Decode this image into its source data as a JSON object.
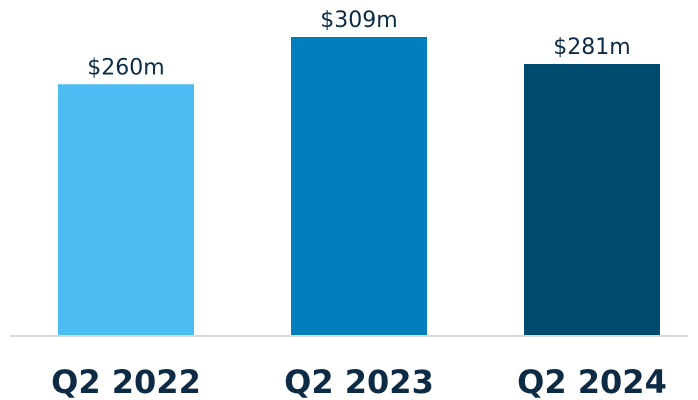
{
  "chart_data": {
    "type": "bar",
    "categories": [
      "Q2 2022",
      "Q2 2023",
      "Q2 2024"
    ],
    "values": [
      260,
      309,
      281
    ],
    "value_labels": [
      "$260m",
      "$309m",
      "$281m"
    ],
    "unit": "$m",
    "title": "",
    "xlabel": "",
    "ylabel": "",
    "ylim": [
      0,
      340
    ],
    "grid": false,
    "legend": "none",
    "colors": [
      "#4bbdf3",
      "#007fbc",
      "#00496f"
    ],
    "axis_color": "#d9d9d9",
    "text_color": "#0d2b45"
  }
}
